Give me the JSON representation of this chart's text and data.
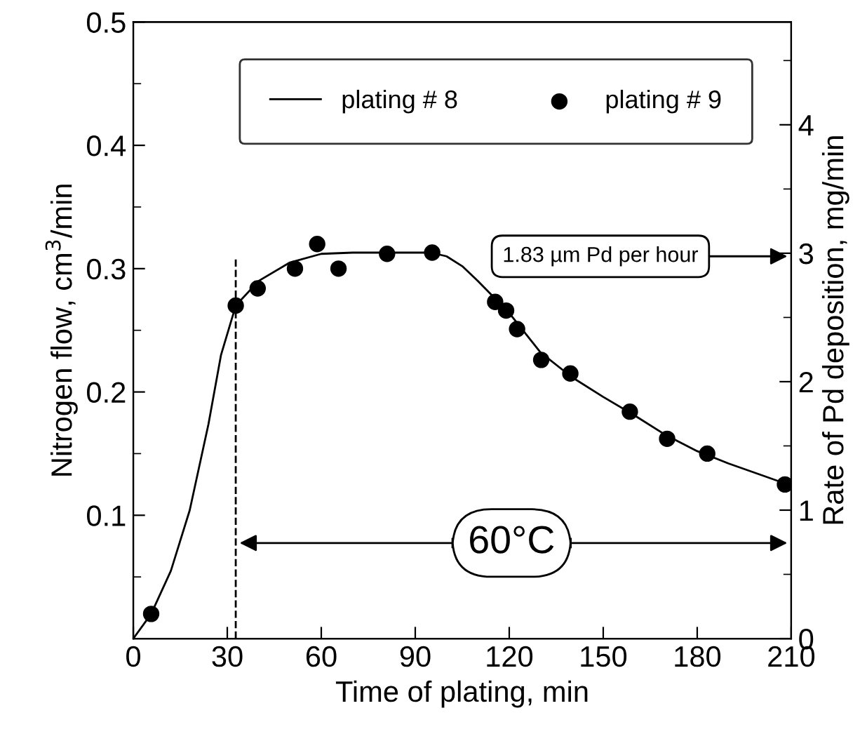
{
  "chart_data": {
    "type": "line",
    "xlabel": "Time of plating, min",
    "ylabel": "Nitrogen flow, cm$^{3}$/min",
    "y2label": "Rate of Pd deposition, mg/min",
    "series": [
      {
        "name": "plating # 8",
        "color": "#000000",
        "marker": "none",
        "x": [
          0,
          5.7,
          12,
          18,
          24,
          28,
          32.7,
          40,
          50,
          60,
          70,
          80,
          95,
          100,
          105,
          110,
          115,
          120,
          130,
          140,
          150,
          160,
          170,
          180,
          190,
          200,
          210
        ],
        "values": [
          0,
          0.02,
          0.055,
          0.104,
          0.174,
          0.23,
          0.27,
          0.29,
          0.305,
          0.312,
          0.313,
          0.313,
          0.313,
          0.31,
          0.302,
          0.29,
          0.277,
          0.264,
          0.232,
          0.212,
          0.196,
          0.181,
          0.165,
          0.152,
          0.142,
          0.133,
          0.124
        ]
      },
      {
        "name": "plating # 9",
        "type": "scatter",
        "color": "#000000",
        "marker": "circle",
        "x": [
          5.7,
          32.7,
          39.7,
          51.6,
          58.7,
          65.5,
          81,
          95.4,
          115.5,
          119,
          122.5,
          130.2,
          139.5,
          158.5,
          170.4,
          183.2,
          208
        ],
        "values": [
          0.02,
          0.27,
          0.284,
          0.3,
          0.32,
          0.3,
          0.312,
          0.313,
          0.273,
          0.266,
          0.251,
          0.226,
          0.215,
          0.184,
          0.162,
          0.15,
          0.125
        ]
      }
    ],
    "xlim": [
      0,
      210
    ],
    "xticks": [
      0,
      30,
      60,
      90,
      120,
      150,
      180,
      210
    ],
    "ylim": [
      0,
      0.5
    ],
    "yticks": [
      0.1,
      0.2,
      0.3,
      0.4,
      0.5
    ],
    "y2lim": [
      0,
      4.8
    ],
    "y2ticks": [
      0,
      1,
      2,
      3,
      4
    ],
    "ref_lines": [
      {
        "axis": "x",
        "value": 32.7,
        "line_style": "dashed",
        "color": "#000000"
      }
    ],
    "annotations": [
      "60°C",
      "1.83 µm Pd per hour"
    ],
    "legend": "top right",
    "grid": false
  }
}
